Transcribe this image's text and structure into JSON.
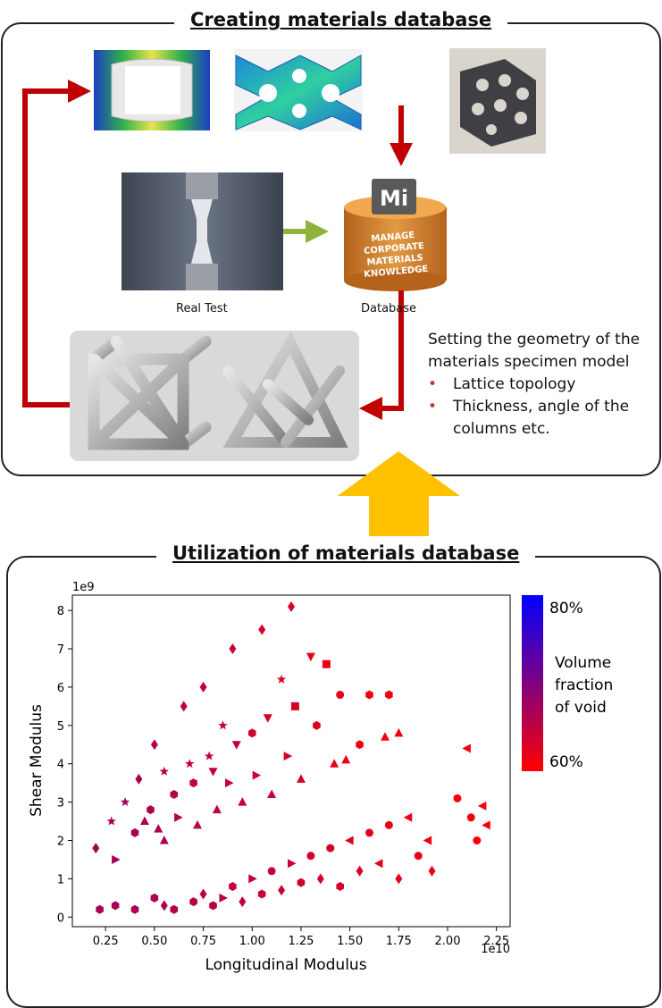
{
  "top": {
    "title": "Creating materials database",
    "real_test_label": "Real Test",
    "database_label": "Database",
    "db_badge": "Mi",
    "db_lines": [
      "MANAGE",
      "CORPORATE",
      "MATERIALS",
      "KNOWLEDGE"
    ],
    "geometry_text": "Setting the geometry of the materials specimen model",
    "geometry_bullets": [
      "Lattice topology",
      "Thickness, angle of the columns etc."
    ]
  },
  "colors": {
    "arrow_red": "#c00000",
    "arrow_green": "#8db33a",
    "big_arrow": "#ffc000",
    "db_orange": "#d9822b"
  },
  "bottom": {
    "title": "Utilization of materials database"
  },
  "colorbar": {
    "top_label": "80%",
    "bottom_label": "60%",
    "title_lines": [
      "Volume",
      "fraction",
      "of void"
    ],
    "top_color": "#0000ff",
    "bottom_color": "#ff0000"
  },
  "chart_data": {
    "type": "scatter",
    "xlabel": "Longitudinal Modulus",
    "ylabel": "Shear Modulus",
    "x_scale_label": "1e10",
    "y_scale_label": "1e9",
    "xlim": [
      0.08,
      2.32
    ],
    "ylim": [
      -0.25,
      8.4
    ],
    "xticks": [
      "0.25",
      "0.50",
      "0.75",
      "1.00",
      "1.25",
      "1.50",
      "1.75",
      "2.00",
      "2.25"
    ],
    "yticks": [
      "0",
      "1",
      "2",
      "3",
      "4",
      "5",
      "6",
      "7",
      "8"
    ],
    "points": [
      [
        0.2,
        1.8,
        "diamond",
        0.35
      ],
      [
        0.28,
        2.5,
        "star",
        0.38
      ],
      [
        0.3,
        1.5,
        "triangle-right",
        0.37
      ],
      [
        0.35,
        3.0,
        "star",
        0.4
      ],
      [
        0.4,
        2.2,
        "hexagon",
        0.4
      ],
      [
        0.42,
        3.6,
        "diamond",
        0.42
      ],
      [
        0.45,
        2.5,
        "triangle",
        0.42
      ],
      [
        0.48,
        2.8,
        "hexagon",
        0.45
      ],
      [
        0.5,
        4.5,
        "diamond",
        0.48
      ],
      [
        0.52,
        2.3,
        "triangle",
        0.45
      ],
      [
        0.55,
        3.8,
        "star",
        0.5
      ],
      [
        0.55,
        2.0,
        "triangle",
        0.45
      ],
      [
        0.6,
        3.2,
        "hexagon",
        0.5
      ],
      [
        0.62,
        2.6,
        "triangle-right",
        0.48
      ],
      [
        0.65,
        5.5,
        "diamond",
        0.55
      ],
      [
        0.68,
        4.0,
        "star",
        0.55
      ],
      [
        0.7,
        3.5,
        "hexagon",
        0.55
      ],
      [
        0.72,
        2.4,
        "triangle",
        0.5
      ],
      [
        0.75,
        6.0,
        "diamond",
        0.6
      ],
      [
        0.78,
        4.2,
        "star",
        0.58
      ],
      [
        0.8,
        3.8,
        "triangle-down",
        0.58
      ],
      [
        0.82,
        2.8,
        "triangle",
        0.55
      ],
      [
        0.85,
        5.0,
        "star",
        0.6
      ],
      [
        0.88,
        3.5,
        "triangle-right",
        0.6
      ],
      [
        0.9,
        7.0,
        "diamond",
        0.65
      ],
      [
        0.92,
        4.5,
        "triangle-down",
        0.63
      ],
      [
        0.95,
        3.0,
        "triangle",
        0.6
      ],
      [
        1.0,
        4.8,
        "hexagon",
        0.65
      ],
      [
        1.02,
        3.7,
        "triangle-right",
        0.65
      ],
      [
        1.05,
        7.5,
        "diamond",
        0.7
      ],
      [
        1.08,
        5.2,
        "triangle-down",
        0.68
      ],
      [
        1.1,
        3.2,
        "triangle",
        0.65
      ],
      [
        1.15,
        6.2,
        "star",
        0.72
      ],
      [
        1.18,
        4.2,
        "triangle-right",
        0.7
      ],
      [
        1.2,
        8.1,
        "diamond",
        0.75
      ],
      [
        1.22,
        5.5,
        "square",
        0.75
      ],
      [
        1.25,
        3.6,
        "triangle",
        0.72
      ],
      [
        1.3,
        6.8,
        "triangle-down",
        0.8
      ],
      [
        1.33,
        5.0,
        "hexagon",
        0.78
      ],
      [
        1.38,
        6.6,
        "square",
        0.85
      ],
      [
        1.42,
        4.0,
        "triangle",
        0.82
      ],
      [
        1.45,
        5.8,
        "circle",
        0.85
      ],
      [
        1.48,
        4.1,
        "triangle",
        0.85
      ],
      [
        1.55,
        4.5,
        "hexagon",
        0.87
      ],
      [
        1.6,
        5.8,
        "hexagon",
        0.9
      ],
      [
        1.68,
        4.7,
        "triangle",
        0.9
      ],
      [
        1.7,
        5.8,
        "hexagon",
        0.92
      ],
      [
        1.75,
        4.8,
        "triangle",
        0.92
      ],
      [
        0.22,
        0.2,
        "hexagon",
        0.38
      ],
      [
        0.3,
        0.3,
        "hexagon",
        0.4
      ],
      [
        0.4,
        0.2,
        "hexagon",
        0.42
      ],
      [
        0.5,
        0.5,
        "hexagon",
        0.45
      ],
      [
        0.55,
        0.3,
        "diamond",
        0.45
      ],
      [
        0.6,
        0.2,
        "hexagon",
        0.48
      ],
      [
        0.7,
        0.4,
        "hexagon",
        0.5
      ],
      [
        0.75,
        0.6,
        "diamond",
        0.52
      ],
      [
        0.8,
        0.3,
        "hexagon",
        0.52
      ],
      [
        0.85,
        0.5,
        "triangle-right",
        0.55
      ],
      [
        0.9,
        0.8,
        "hexagon",
        0.58
      ],
      [
        0.95,
        0.4,
        "diamond",
        0.57
      ],
      [
        1.0,
        1.0,
        "triangle-right",
        0.6
      ],
      [
        1.05,
        0.6,
        "hexagon",
        0.62
      ],
      [
        1.1,
        1.2,
        "circle",
        0.63
      ],
      [
        1.15,
        0.7,
        "diamond",
        0.64
      ],
      [
        1.2,
        1.4,
        "triangle-right",
        0.66
      ],
      [
        1.25,
        0.9,
        "hexagon",
        0.67
      ],
      [
        1.3,
        1.6,
        "circle",
        0.7
      ],
      [
        1.35,
        1.0,
        "diamond",
        0.7
      ],
      [
        1.4,
        1.8,
        "circle",
        0.72
      ],
      [
        1.45,
        0.8,
        "hexagon",
        0.72
      ],
      [
        1.5,
        2.0,
        "triangle-left",
        0.75
      ],
      [
        1.55,
        1.2,
        "diamond",
        0.76
      ],
      [
        1.6,
        2.2,
        "circle",
        0.78
      ],
      [
        1.65,
        1.4,
        "triangle-left",
        0.8
      ],
      [
        1.7,
        2.4,
        "circle",
        0.82
      ],
      [
        1.75,
        1.0,
        "diamond",
        0.82
      ],
      [
        1.8,
        2.6,
        "triangle-left",
        0.85
      ],
      [
        1.85,
        1.6,
        "circle",
        0.86
      ],
      [
        1.9,
        2.0,
        "triangle-left",
        0.88
      ],
      [
        1.92,
        1.2,
        "diamond",
        0.88
      ],
      [
        2.05,
        3.1,
        "circle",
        0.92
      ],
      [
        2.1,
        4.4,
        "triangle-left",
        0.95
      ],
      [
        2.12,
        2.6,
        "circle",
        0.94
      ],
      [
        2.15,
        2.0,
        "circle",
        0.95
      ],
      [
        2.18,
        2.9,
        "triangle-left",
        0.96
      ],
      [
        2.2,
        2.4,
        "triangle-left",
        0.97
      ]
    ]
  }
}
